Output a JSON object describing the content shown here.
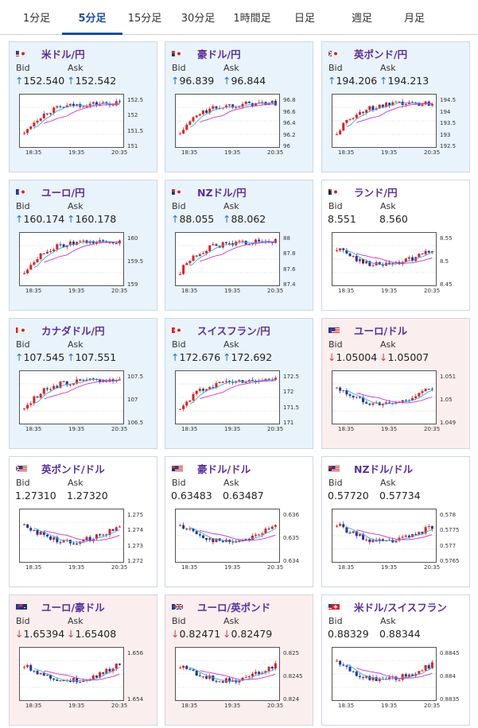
{
  "tabs": [
    "1分足",
    "5分足",
    "15分足",
    "30分足",
    "1時間足",
    "日足",
    "週足",
    "月足"
  ],
  "active_tab": 1,
  "bid_label": "Bid",
  "ask_label": "Ask",
  "x_ticks": [
    "18:35",
    "19:35",
    "20:35"
  ],
  "colors": {
    "up_arrow": "#1f78c8",
    "down_arrow": "#d04040",
    "title": "#5b2fa0",
    "ma_fast": "#33aadd",
    "ma_slow": "#cc33cc",
    "candle_up": "#e02020",
    "candle_down": "#1a3aa0"
  },
  "cards": [
    {
      "title": "米ドル/円",
      "flag": "us-jp-flag",
      "trend": "up",
      "bid": "152.540",
      "ask": "152.542",
      "ylabels": [
        "152.5",
        "152",
        "151.5",
        "151"
      ]
    },
    {
      "title": "豪ドル/円",
      "flag": "au-jp-flag",
      "trend": "up",
      "bid": "96.839",
      "ask": "96.844",
      "ylabels": [
        "96.8",
        "96.6",
        "96.4",
        "96.2",
        "96"
      ]
    },
    {
      "title": "英ポンド/円",
      "flag": "gb-jp-flag",
      "trend": "up",
      "bid": "194.206",
      "ask": "194.213",
      "ylabels": [
        "194.5",
        "194",
        "193.5",
        "193",
        "192.5"
      ]
    },
    {
      "title": "ユーロ/円",
      "flag": "eu-jp-flag",
      "trend": "up",
      "bid": "160.174",
      "ask": "160.178",
      "ylabels": [
        "160",
        "159.5",
        "159"
      ]
    },
    {
      "title": "NZドル/円",
      "flag": "nz-jp-flag",
      "trend": "up",
      "bid": "88.055",
      "ask": "88.062",
      "ylabels": [
        "88",
        "87.8",
        "87.6",
        "87.4"
      ]
    },
    {
      "title": "ランド/円",
      "flag": "za-jp-flag",
      "trend": "flat",
      "bid": "8.551",
      "ask": "8.560",
      "ylabels": [
        "8.55",
        "8.5",
        "8.45"
      ]
    },
    {
      "title": "カナダドル/円",
      "flag": "ca-jp-flag",
      "trend": "up",
      "bid": "107.545",
      "ask": "107.551",
      "ylabels": [
        "107.5",
        "107",
        "106.5"
      ]
    },
    {
      "title": "スイスフラン/円",
      "flag": "ch-jp-flag",
      "trend": "up",
      "bid": "172.676",
      "ask": "172.692",
      "ylabels": [
        "172.5",
        "172",
        "171.5",
        "171"
      ]
    },
    {
      "title": "ユーロ/ドル",
      "flag": "eu-us-flag",
      "trend": "down",
      "bid": "1.05004",
      "ask": "1.05007",
      "ylabels": [
        "1.051",
        "1.05",
        "1.049"
      ]
    },
    {
      "title": "英ポンド/ドル",
      "flag": "gb-us-flag",
      "trend": "flat",
      "bid": "1.27310",
      "ask": "1.27320",
      "ylabels": [
        "1.275",
        "1.274",
        "1.273",
        "1.272"
      ]
    },
    {
      "title": "豪ドル/ドル",
      "flag": "au-us-flag",
      "trend": "flat",
      "bid": "0.63483",
      "ask": "0.63487",
      "ylabels": [
        "0.636",
        "0.635",
        "0.634"
      ]
    },
    {
      "title": "NZドル/ドル",
      "flag": "nz-us-flag",
      "trend": "flat",
      "bid": "0.57720",
      "ask": "0.57734",
      "ylabels": [
        "0.578",
        "0.5775",
        "0.577",
        "0.5765"
      ]
    },
    {
      "title": "ユーロ/豪ドル",
      "flag": "eu-au-flag",
      "trend": "down",
      "bid": "1.65394",
      "ask": "1.65408",
      "ylabels": [
        "1.656",
        "1.654"
      ]
    },
    {
      "title": "ユーロ/英ポンド",
      "flag": "eu-gb-flag",
      "trend": "down",
      "bid": "0.82471",
      "ask": "0.82479",
      "ylabels": [
        "0.825",
        "0.8245",
        "0.824"
      ]
    },
    {
      "title": "米ドル/スイスフラン",
      "flag": "us-ch-flag",
      "trend": "flat",
      "bid": "0.88329",
      "ask": "0.88344",
      "ylabels": [
        "0.8845",
        "0.884",
        "0.8835"
      ]
    }
  ]
}
